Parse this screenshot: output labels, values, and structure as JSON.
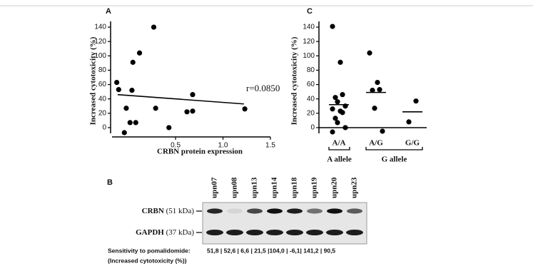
{
  "chart_data": [
    {
      "type": "scatter",
      "panel": "A",
      "x_label": "CRBN protein expression",
      "y_label": "Increased cytotoxicity (%)",
      "x": [
        -0.12,
        -0.1,
        -0.02,
        -0.04,
        0.02,
        0.08,
        0.04,
        0.05,
        0.12,
        0.27,
        0.29,
        0.43,
        0.62,
        0.68,
        0.68,
        1.23
      ],
      "values": [
        63,
        53,
        27,
        -7,
        7,
        7,
        52,
        91,
        104,
        140,
        27,
        0,
        22,
        23,
        46,
        26
      ],
      "color": "#000000",
      "xlim": [
        -0.17,
        1.5
      ],
      "xticks": [
        0.5,
        {
          "value": 1,
          "label": "1.0"
        },
        1.5
      ],
      "ylim": [
        -8,
        148
      ],
      "yticks": [
        0,
        20,
        40,
        60,
        80,
        100,
        120,
        140
      ],
      "fit_line": {
        "x": [
          -0.11,
          1.22
        ],
        "values": [
          46,
          33
        ]
      },
      "annotation": "r=0.0850"
    },
    {
      "type": "dot",
      "panel": "C",
      "y_label": "Increased cytotoxicity (%)",
      "categories": [
        "A/A",
        "A/G",
        "G/G"
      ],
      "values": [
        [
          141,
          91,
          46,
          42,
          36,
          30,
          26,
          23,
          21,
          13,
          7,
          0,
          -6
        ],
        [
          104,
          63,
          53,
          52,
          27,
          -5
        ],
        [
          37,
          8
        ]
      ],
      "line_values": [
        32,
        49,
        22
      ],
      "groups": [
        "A allele",
        "G allele"
      ],
      "color": "#000000",
      "ylim": [
        -8,
        148
      ],
      "yticks": [
        0,
        20,
        40,
        60,
        80,
        100,
        120,
        140
      ]
    }
  ],
  "blot": {
    "panel": "B",
    "lanes": [
      "upn07",
      "upn08",
      "upn13",
      "upn14",
      "upn18",
      "upn19",
      "upn20",
      "upn23"
    ],
    "proteins": [
      {
        "name": "CRBN",
        "size": "(51 kDa)"
      },
      {
        "name": "GAPDH",
        "size": "(37 kDa)"
      }
    ],
    "sensitivity_label": "Sensitivity to pomalidomide:",
    "sensitivity_values": "51,8 | 52,6 | 6,6 | 21,5 |104,0 | -6,1| 141,2 | 90,5",
    "sensitivity_note": "(Increased cytotoxicity (%))"
  }
}
